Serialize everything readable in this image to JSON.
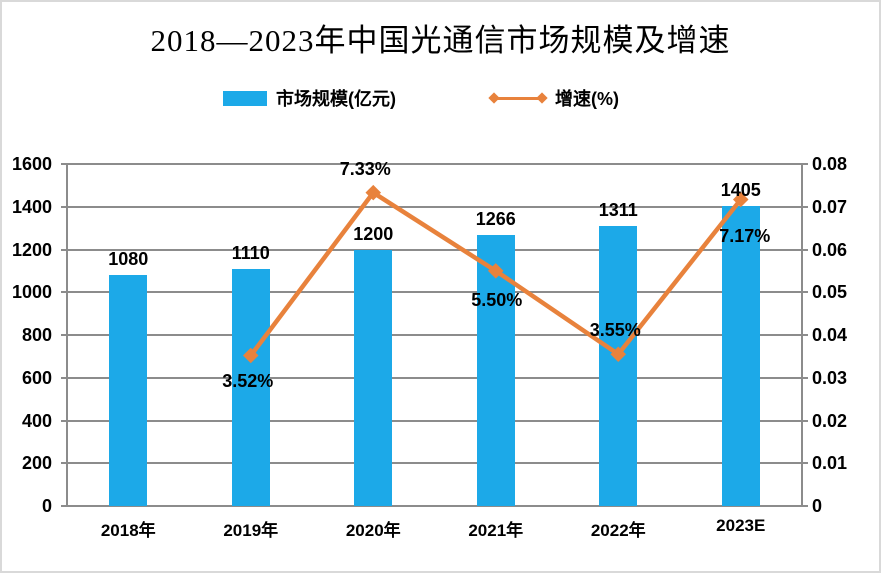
{
  "title": "2018—2023年中国光通信市场规模及增速",
  "legend": {
    "market_label": "市场规模(亿元)",
    "growth_label": "增速(%)"
  },
  "colors": {
    "bar": "#1CA9E8",
    "line": "#E8823C",
    "grid": "#8C8C8C",
    "text": "#000000",
    "frame": "#D9D9D9",
    "background": "#FFFFFF"
  },
  "chart_data": {
    "type": "bar+line",
    "title": "2018—2023年中国光通信市场规模及增速",
    "categories": [
      "2018年",
      "2019年",
      "2020年",
      "2021年",
      "2022年",
      "2023E"
    ],
    "series": [
      {
        "name": "市场规模(亿元)",
        "type": "bar",
        "axis": "left",
        "values": [
          1080,
          1110,
          1200,
          1266,
          1311,
          1405
        ],
        "labels": [
          "1080",
          "1110",
          "1200",
          "1266",
          "1311",
          "1405"
        ],
        "color": "#1CA9E8"
      },
      {
        "name": "增速(%)",
        "type": "line",
        "axis": "right",
        "marker": "diamond",
        "values": [
          null,
          0.0352,
          0.0733,
          0.055,
          0.0355,
          0.0717
        ],
        "labels": [
          null,
          "3.52%",
          "7.33%",
          "5.50%",
          "3.55%",
          "7.17%"
        ],
        "label_offsets": [
          null,
          {
            "dx": -3,
            "dy": 16
          },
          {
            "dx": -8,
            "dy": -33
          },
          {
            "dx": 1,
            "dy": 20
          },
          {
            "dx": -3,
            "dy": -33
          },
          {
            "dx": 4,
            "dy": 28
          }
        ],
        "color": "#E8823C"
      }
    ],
    "left_axis": {
      "min": 0,
      "max": 1600,
      "step": 200,
      "ticks": [
        "0",
        "200",
        "400",
        "600",
        "800",
        "1000",
        "1200",
        "1400",
        "1600"
      ]
    },
    "right_axis": {
      "min": 0,
      "max": 0.08,
      "step": 0.01,
      "ticks": [
        "0",
        "0.01",
        "0.02",
        "0.03",
        "0.04",
        "0.05",
        "0.06",
        "0.07",
        "0.08"
      ]
    },
    "grid": true,
    "legend_position": "top"
  }
}
